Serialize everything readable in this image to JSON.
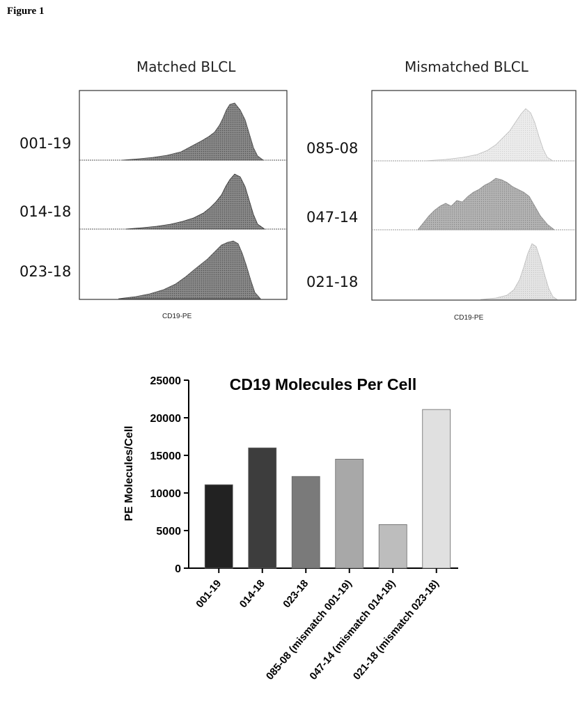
{
  "figure_label": "Figure 1",
  "histograms": {
    "left": {
      "title": "Matched BLCL",
      "rows": [
        "001-19",
        "014-18",
        "023-18"
      ],
      "xlabel": "CD19-PE"
    },
    "right": {
      "title": "Mismatched BLCL",
      "rows": [
        "085-08",
        "047-14",
        "021-18"
      ],
      "xlabel": "CD19-PE"
    }
  },
  "chart_data": [
    {
      "type": "bar",
      "title": "CD19 Molecules Per Cell",
      "xlabel": "",
      "ylabel": "PE Molecules/Cell",
      "ylim": [
        0,
        25000
      ],
      "yticks": [
        0,
        5000,
        10000,
        15000,
        20000,
        25000
      ],
      "categories": [
        "001-19",
        "014-18",
        "023-18",
        "085-08 (mismatch 001-19)",
        "047-14 (mismatch 014-18)",
        "021-18 (mismatch 023-18)"
      ],
      "values": [
        11100,
        16000,
        12200,
        14500,
        5800,
        21100
      ],
      "bar_colors": [
        "#222222",
        "#3d3d3d",
        "#7a7a7a",
        "#a8a8a8",
        "#bdbdbd",
        "#e0e0e0"
      ]
    }
  ]
}
